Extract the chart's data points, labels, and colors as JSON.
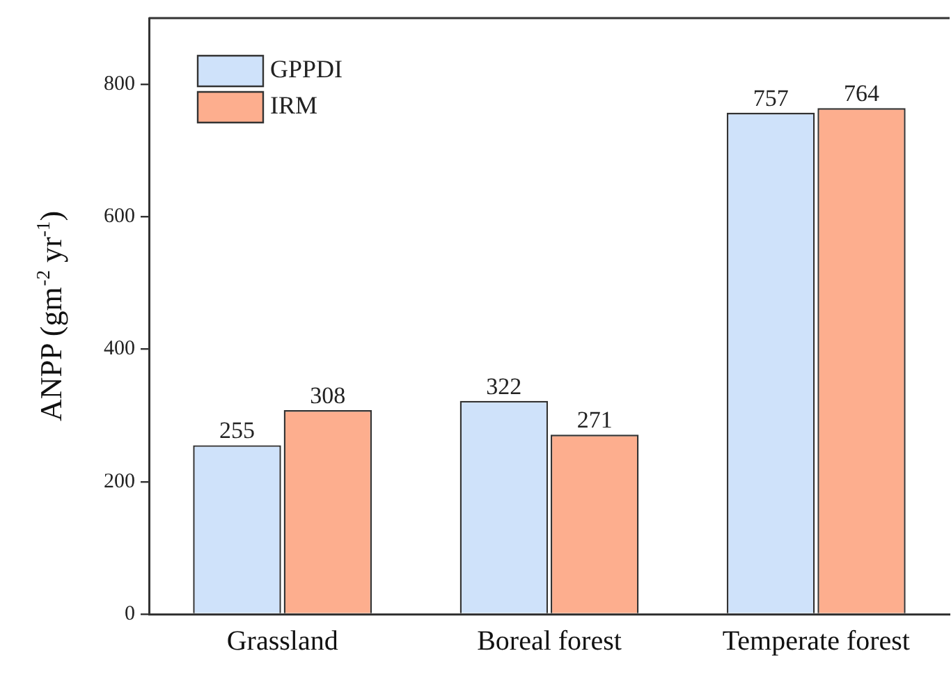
{
  "chart_data": {
    "type": "bar",
    "ylabel": "ANPP (gm$^{-2}$ yr$^{-1}$)",
    "categories": [
      "Grassland",
      "Boreal forest",
      "Temperate forest"
    ],
    "series": [
      {
        "name": "GPPDI",
        "color": "#cfe2fa",
        "values": [
          255,
          322,
          757
        ]
      },
      {
        "name": "IRM",
        "color": "#fdae8e",
        "values": [
          308,
          271,
          764
        ]
      }
    ],
    "ylim": [
      0,
      900
    ],
    "yticks": [
      0,
      200,
      400,
      600,
      800
    ],
    "grid": false,
    "legend": "top left",
    "data_labels": true
  }
}
